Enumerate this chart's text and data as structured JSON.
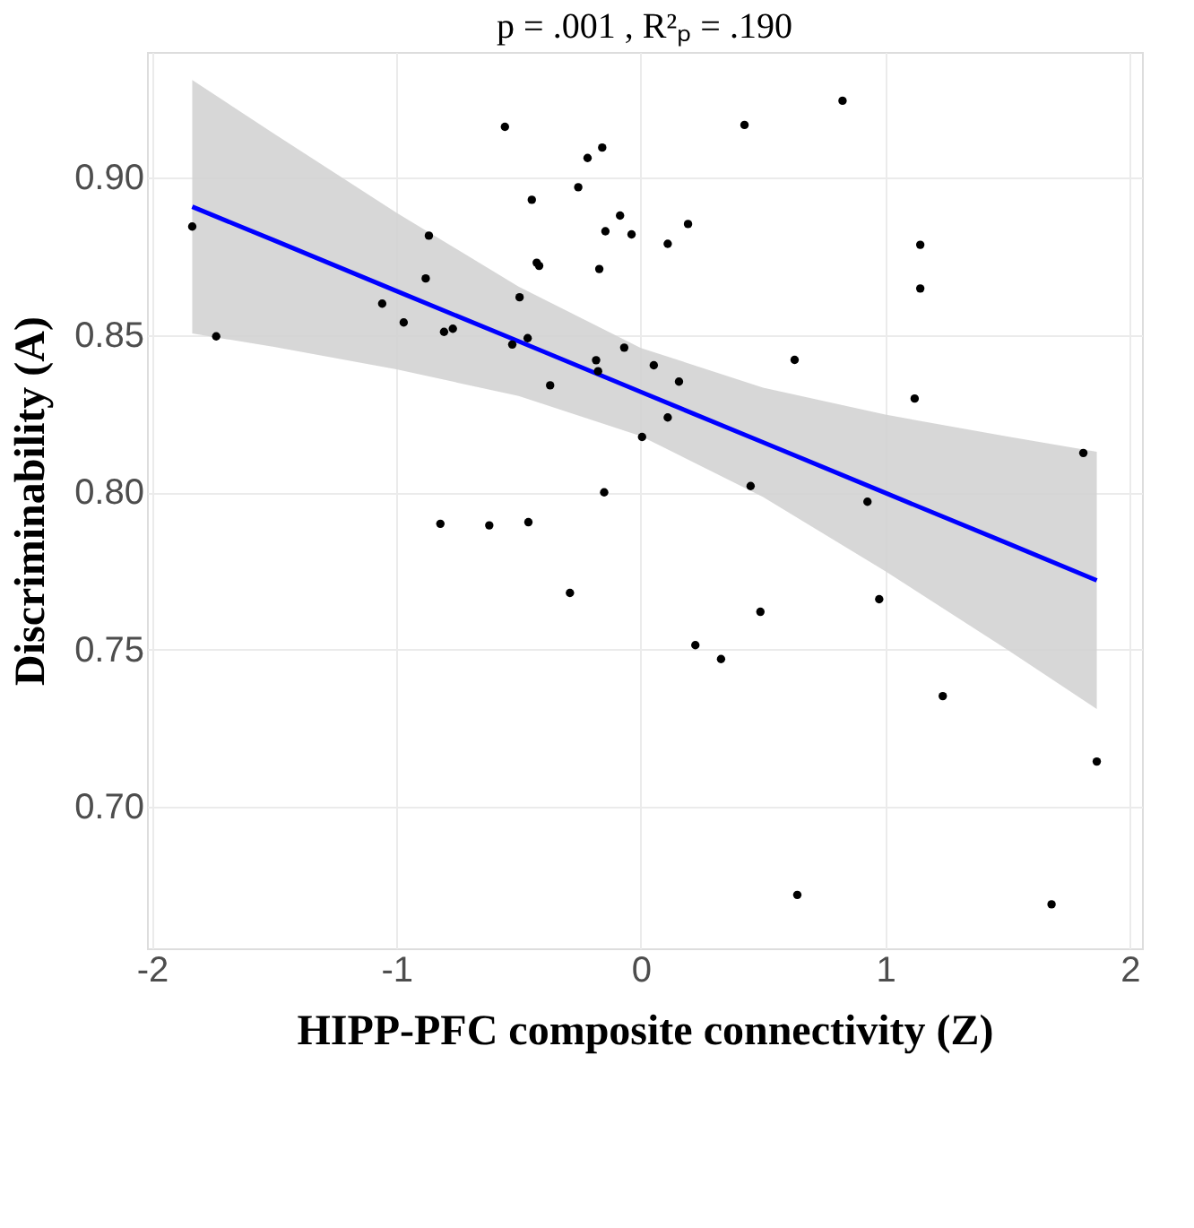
{
  "chart_data": {
    "type": "scatter",
    "title": "p = .001 ,  R²ₚ = .190",
    "xlabel": "HIPP-PFC composite connectivity (Z)",
    "ylabel": "Discriminability (A)",
    "xlim": [
      -2.02,
      2.05
    ],
    "ylim": [
      0.655,
      0.94
    ],
    "xticks": [
      -2,
      -1,
      0,
      1,
      2
    ],
    "yticks": [
      {
        "value": 0.7,
        "label": "0.70"
      },
      {
        "value": 0.75,
        "label": "0.75"
      },
      {
        "value": 0.8,
        "label": "0.80"
      },
      {
        "value": 0.85,
        "label": "0.85"
      },
      {
        "value": 0.9,
        "label": "0.90"
      }
    ],
    "grid": true,
    "series": [
      {
        "color": "#000000",
        "marker": "circle",
        "x": [
          -1.835,
          -1.737,
          -0.556,
          -0.218,
          -0.158,
          -0.256,
          -0.446,
          -0.085,
          -0.145,
          -0.038,
          -0.867,
          -0.426,
          -0.416,
          -0.17,
          -0.88,
          -1.058,
          -0.496,
          -0.97,
          -0.805,
          -0.769,
          -0.463,
          -0.526,
          -0.068,
          -0.183,
          -0.175,
          -0.371,
          0.825,
          0.424,
          0.193,
          0.11,
          1.143,
          1.143,
          0.053,
          0.156,
          0.629,
          1.12,
          0.11,
          0.005,
          1.81,
          0.449,
          0.927,
          0.975,
          0.489,
          0.223,
          0.328,
          1.235,
          1.865,
          0.64,
          1.68,
          -0.82,
          -0.62,
          -0.46,
          -0.15,
          -0.29
        ],
        "values": [
          0.8845,
          0.8496,
          0.9162,
          0.9063,
          0.9096,
          0.897,
          0.893,
          0.888,
          0.883,
          0.882,
          0.8816,
          0.873,
          0.872,
          0.871,
          0.868,
          0.86,
          0.862,
          0.854,
          0.851,
          0.852,
          0.849,
          0.847,
          0.846,
          0.842,
          0.8385,
          0.834,
          0.9245,
          0.9168,
          0.8853,
          0.879,
          0.8787,
          0.8648,
          0.8404,
          0.8352,
          0.8421,
          0.8298,
          0.8238,
          0.8176,
          0.8125,
          0.802,
          0.797,
          0.766,
          0.762,
          0.7514,
          0.747,
          0.7352,
          0.7144,
          0.672,
          0.669,
          0.79,
          0.7895,
          0.7905,
          0.8,
          0.768
        ]
      },
      {
        "type": "line",
        "color": "#0000ff",
        "x": [
          -1.835,
          -1.5,
          -1,
          -0.5,
          0,
          0.5,
          1,
          1.5,
          1.865
        ],
        "values": [
          0.8908,
          0.8801,
          0.864,
          0.848,
          0.8319,
          0.8159,
          0.7998,
          0.7838,
          0.772
        ],
        "lower": [
          0.8505,
          0.8462,
          0.8391,
          0.8306,
          0.8179,
          0.7985,
          0.7749,
          0.7499,
          0.7311
        ],
        "upper": [
          0.9311,
          0.914,
          0.8889,
          0.8654,
          0.8459,
          0.8333,
          0.8247,
          0.8177,
          0.8129
        ],
        "marker": "none"
      }
    ]
  }
}
